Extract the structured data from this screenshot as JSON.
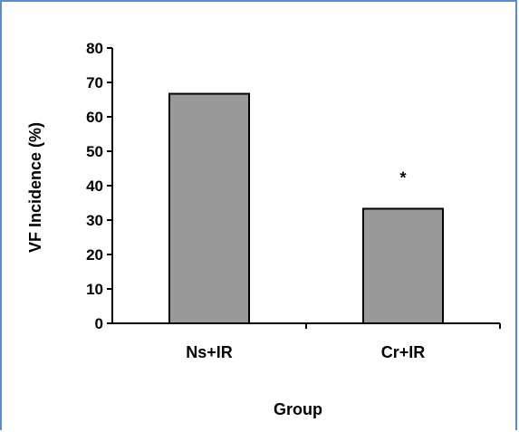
{
  "chart_data": {
    "type": "bar",
    "title": "",
    "xlabel": "Group",
    "ylabel": "VF Incidence (%)",
    "categories": [
      "Ns+IR",
      "Cr+IR"
    ],
    "values": [
      66.7,
      33.3
    ],
    "annotations": [
      "",
      "*"
    ],
    "ylim": [
      0,
      80
    ],
    "yticks": [
      "0",
      "10",
      "20",
      "30",
      "40",
      "50",
      "60",
      "70",
      "80"
    ],
    "bar_color": "#999999",
    "bar_edge_color": "#000000",
    "grid": false,
    "legend": "none"
  },
  "colors": {
    "frame_border": "#5b8bd0",
    "background": "#ffffff"
  }
}
